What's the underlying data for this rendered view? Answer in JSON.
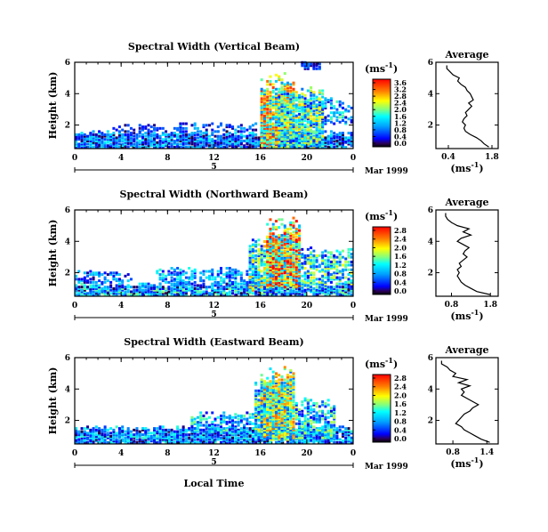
{
  "chart_data": [
    {
      "type": "heatmap",
      "title": "Spectral Width (Vertical Beam)",
      "ylabel": "Height (km)",
      "xlabel": "",
      "x_ticks": [
        "0",
        "4",
        "8",
        "12",
        "16",
        "20",
        "0"
      ],
      "y_ticks": [
        "2",
        "4",
        "6"
      ],
      "date_label": "Mar 1999",
      "date_marker": "5",
      "xlim": [
        0,
        24
      ],
      "ylim": [
        0.5,
        6
      ],
      "colorbar": {
        "unit_label": "(ms",
        "unit_exp": "-1",
        "unit_close": ")",
        "ticks": [
          "0.0",
          "0.4",
          "0.8",
          "1.2",
          "1.6",
          "2.0",
          "2.4",
          "2.8",
          "3.2",
          "3.6"
        ],
        "range": [
          0,
          3.8
        ]
      },
      "average": {
        "title": "Average",
        "xlabel_pre": "(ms",
        "xlabel_exp": "-1",
        "xlabel_post": ")",
        "x_ticks": [
          "0.4",
          "1.8"
        ],
        "y_ticks": [
          "2",
          "4",
          "6"
        ],
        "xlim": [
          0.0,
          2.0
        ],
        "ylim": [
          0.5,
          6
        ],
        "heights": [
          0.6,
          0.8,
          1.0,
          1.2,
          1.4,
          1.6,
          1.8,
          2.0,
          2.2,
          2.4,
          2.6,
          2.8,
          3.0,
          3.2,
          3.4,
          3.6,
          3.8,
          4.0,
          4.2,
          4.4,
          4.6,
          4.8,
          5.0,
          5.2,
          5.4,
          5.6,
          5.8
        ],
        "values": [
          1.7,
          1.55,
          1.45,
          1.3,
          1.1,
          0.95,
          0.9,
          0.95,
          0.85,
          0.9,
          1.0,
          0.95,
          1.05,
          1.15,
          1.05,
          1.2,
          1.15,
          1.1,
          1.0,
          0.95,
          0.8,
          0.7,
          0.75,
          0.55,
          0.45,
          0.35,
          0.35
        ]
      },
      "regions": [
        {
          "x0": 0,
          "x1": 24,
          "y0": 0.5,
          "y1": 1.6,
          "mean": 0.9,
          "spread": 0.8,
          "density": 0.85
        },
        {
          "x0": 3,
          "x1": 8,
          "y0": 1.5,
          "y1": 2.0,
          "mean": 0.6,
          "spread": 0.4,
          "density": 0.3
        },
        {
          "x0": 8,
          "x1": 16,
          "y0": 1.5,
          "y1": 2.1,
          "mean": 0.8,
          "spread": 0.6,
          "density": 0.35
        },
        {
          "x0": 16,
          "x1": 18.8,
          "y0": 0.5,
          "y1": 5.3,
          "mean": 2.2,
          "spread": 1.4,
          "density": 0.9
        },
        {
          "x0": 17.5,
          "x1": 21.5,
          "y0": 0.5,
          "y1": 4.4,
          "mean": 1.7,
          "spread": 1.2,
          "density": 0.85
        },
        {
          "x0": 21.5,
          "x1": 24,
          "y0": 2.0,
          "y1": 3.8,
          "mean": 1.2,
          "spread": 0.9,
          "density": 0.35
        },
        {
          "x0": 19.5,
          "x1": 21.2,
          "y0": 5.5,
          "y1": 6.0,
          "mean": 0.6,
          "spread": 0.4,
          "density": 0.7
        }
      ]
    },
    {
      "type": "heatmap",
      "title": "Spectral Width (Northward Beam)",
      "ylabel": "Height (km)",
      "xlabel": "",
      "x_ticks": [
        "0",
        "4",
        "8",
        "12",
        "16",
        "20",
        "0"
      ],
      "y_ticks": [
        "2",
        "4",
        "6"
      ],
      "date_label": "Mar 1999",
      "date_marker": "5",
      "xlim": [
        0,
        24
      ],
      "ylim": [
        0.5,
        6
      ],
      "colorbar": {
        "unit_label": "(ms",
        "unit_exp": "-1",
        "unit_close": ")",
        "ticks": [
          "0.0",
          "0.4",
          "0.8",
          "1.2",
          "1.6",
          "2.0",
          "2.4",
          "2.8"
        ],
        "range": [
          0,
          3.0
        ]
      },
      "average": {
        "title": "Average",
        "xlabel_pre": "(ms",
        "xlabel_exp": "-1",
        "xlabel_post": ")",
        "x_ticks": [
          "0.8",
          "1.8"
        ],
        "y_ticks": [
          "2",
          "4",
          "6"
        ],
        "xlim": [
          0.4,
          2.0
        ],
        "ylim": [
          0.5,
          6
        ],
        "heights": [
          0.6,
          0.8,
          1.0,
          1.2,
          1.4,
          1.6,
          1.8,
          2.0,
          2.2,
          2.4,
          2.6,
          2.8,
          3.0,
          3.2,
          3.4,
          3.6,
          3.8,
          4.0,
          4.2,
          4.4,
          4.6,
          4.8,
          5.0,
          5.2,
          5.4,
          5.6,
          5.8
        ],
        "values": [
          1.8,
          1.45,
          1.3,
          1.15,
          1.05,
          1.0,
          0.95,
          1.0,
          0.95,
          1.05,
          1.0,
          1.1,
          1.2,
          1.1,
          1.15,
          1.25,
          1.1,
          0.95,
          1.05,
          1.3,
          1.1,
          1.25,
          0.95,
          0.8,
          0.7,
          0.65,
          0.65
        ]
      },
      "regions": [
        {
          "x0": 0,
          "x1": 24,
          "y0": 0.5,
          "y1": 1.3,
          "mean": 0.9,
          "spread": 0.8,
          "density": 0.85
        },
        {
          "x0": 0,
          "x1": 5,
          "y0": 1.3,
          "y1": 2.1,
          "mean": 0.7,
          "spread": 0.5,
          "density": 0.35
        },
        {
          "x0": 7,
          "x1": 16,
          "y0": 1.2,
          "y1": 2.3,
          "mean": 0.9,
          "spread": 0.6,
          "density": 0.45
        },
        {
          "x0": 15,
          "x1": 18,
          "y0": 0.8,
          "y1": 4.3,
          "mean": 1.4,
          "spread": 1.0,
          "density": 0.7
        },
        {
          "x0": 16.5,
          "x1": 19.5,
          "y0": 1.0,
          "y1": 5.5,
          "mean": 1.9,
          "spread": 1.2,
          "density": 0.9
        },
        {
          "x0": 19.5,
          "x1": 24,
          "y0": 1.2,
          "y1": 3.6,
          "mean": 1.2,
          "spread": 0.9,
          "density": 0.55
        }
      ]
    },
    {
      "type": "heatmap",
      "title": "Spectral Width (Eastward Beam)",
      "ylabel": "Height (km)",
      "xlabel": "Local Time",
      "x_ticks": [
        "0",
        "4",
        "8",
        "12",
        "16",
        "20",
        "0"
      ],
      "y_ticks": [
        "2",
        "4",
        "6"
      ],
      "date_label": "Mar 1999",
      "date_marker": "5",
      "xlim": [
        0,
        24
      ],
      "ylim": [
        0.5,
        6
      ],
      "colorbar": {
        "unit_label": "(ms",
        "unit_exp": "-1",
        "unit_close": ")",
        "ticks": [
          "0.0",
          "0.4",
          "0.8",
          "1.2",
          "1.6",
          "2.0",
          "2.4",
          "2.8"
        ],
        "range": [
          0,
          3.0
        ]
      },
      "average": {
        "title": "Average",
        "xlabel_pre": "(ms",
        "xlabel_exp": "-1",
        "xlabel_post": ")",
        "x_ticks": [
          "0.8",
          "1.4"
        ],
        "y_ticks": [
          "2",
          "4",
          "6"
        ],
        "xlim": [
          0.5,
          1.6
        ],
        "ylim": [
          0.5,
          6
        ],
        "heights": [
          0.6,
          0.8,
          1.0,
          1.2,
          1.4,
          1.6,
          1.8,
          2.0,
          2.2,
          2.4,
          2.6,
          2.8,
          3.0,
          3.2,
          3.4,
          3.6,
          3.8,
          4.0,
          4.2,
          4.4,
          4.6,
          4.8,
          5.0,
          5.2,
          5.4,
          5.6,
          5.8
        ],
        "values": [
          1.45,
          1.3,
          1.2,
          1.1,
          1.0,
          0.95,
          0.85,
          0.9,
          0.95,
          1.0,
          1.1,
          1.15,
          1.25,
          1.15,
          1.05,
          0.95,
          1.0,
          0.95,
          1.1,
          0.9,
          1.05,
          0.8,
          0.85,
          0.75,
          0.7,
          0.6,
          0.6
        ]
      },
      "regions": [
        {
          "x0": 0,
          "x1": 24,
          "y0": 0.5,
          "y1": 1.6,
          "mean": 0.8,
          "spread": 0.7,
          "density": 0.85
        },
        {
          "x0": 10,
          "x1": 16,
          "y0": 1.2,
          "y1": 2.5,
          "mean": 1.0,
          "spread": 0.7,
          "density": 0.5
        },
        {
          "x0": 15.5,
          "x1": 18.5,
          "y0": 0.7,
          "y1": 4.6,
          "mean": 1.3,
          "spread": 0.9,
          "density": 0.75
        },
        {
          "x0": 16,
          "x1": 19,
          "y0": 0.8,
          "y1": 5.4,
          "mean": 1.6,
          "spread": 1.0,
          "density": 0.9
        },
        {
          "x0": 19,
          "x1": 22.5,
          "y0": 0.8,
          "y1": 3.4,
          "mean": 1.1,
          "spread": 0.8,
          "density": 0.6
        }
      ]
    }
  ]
}
